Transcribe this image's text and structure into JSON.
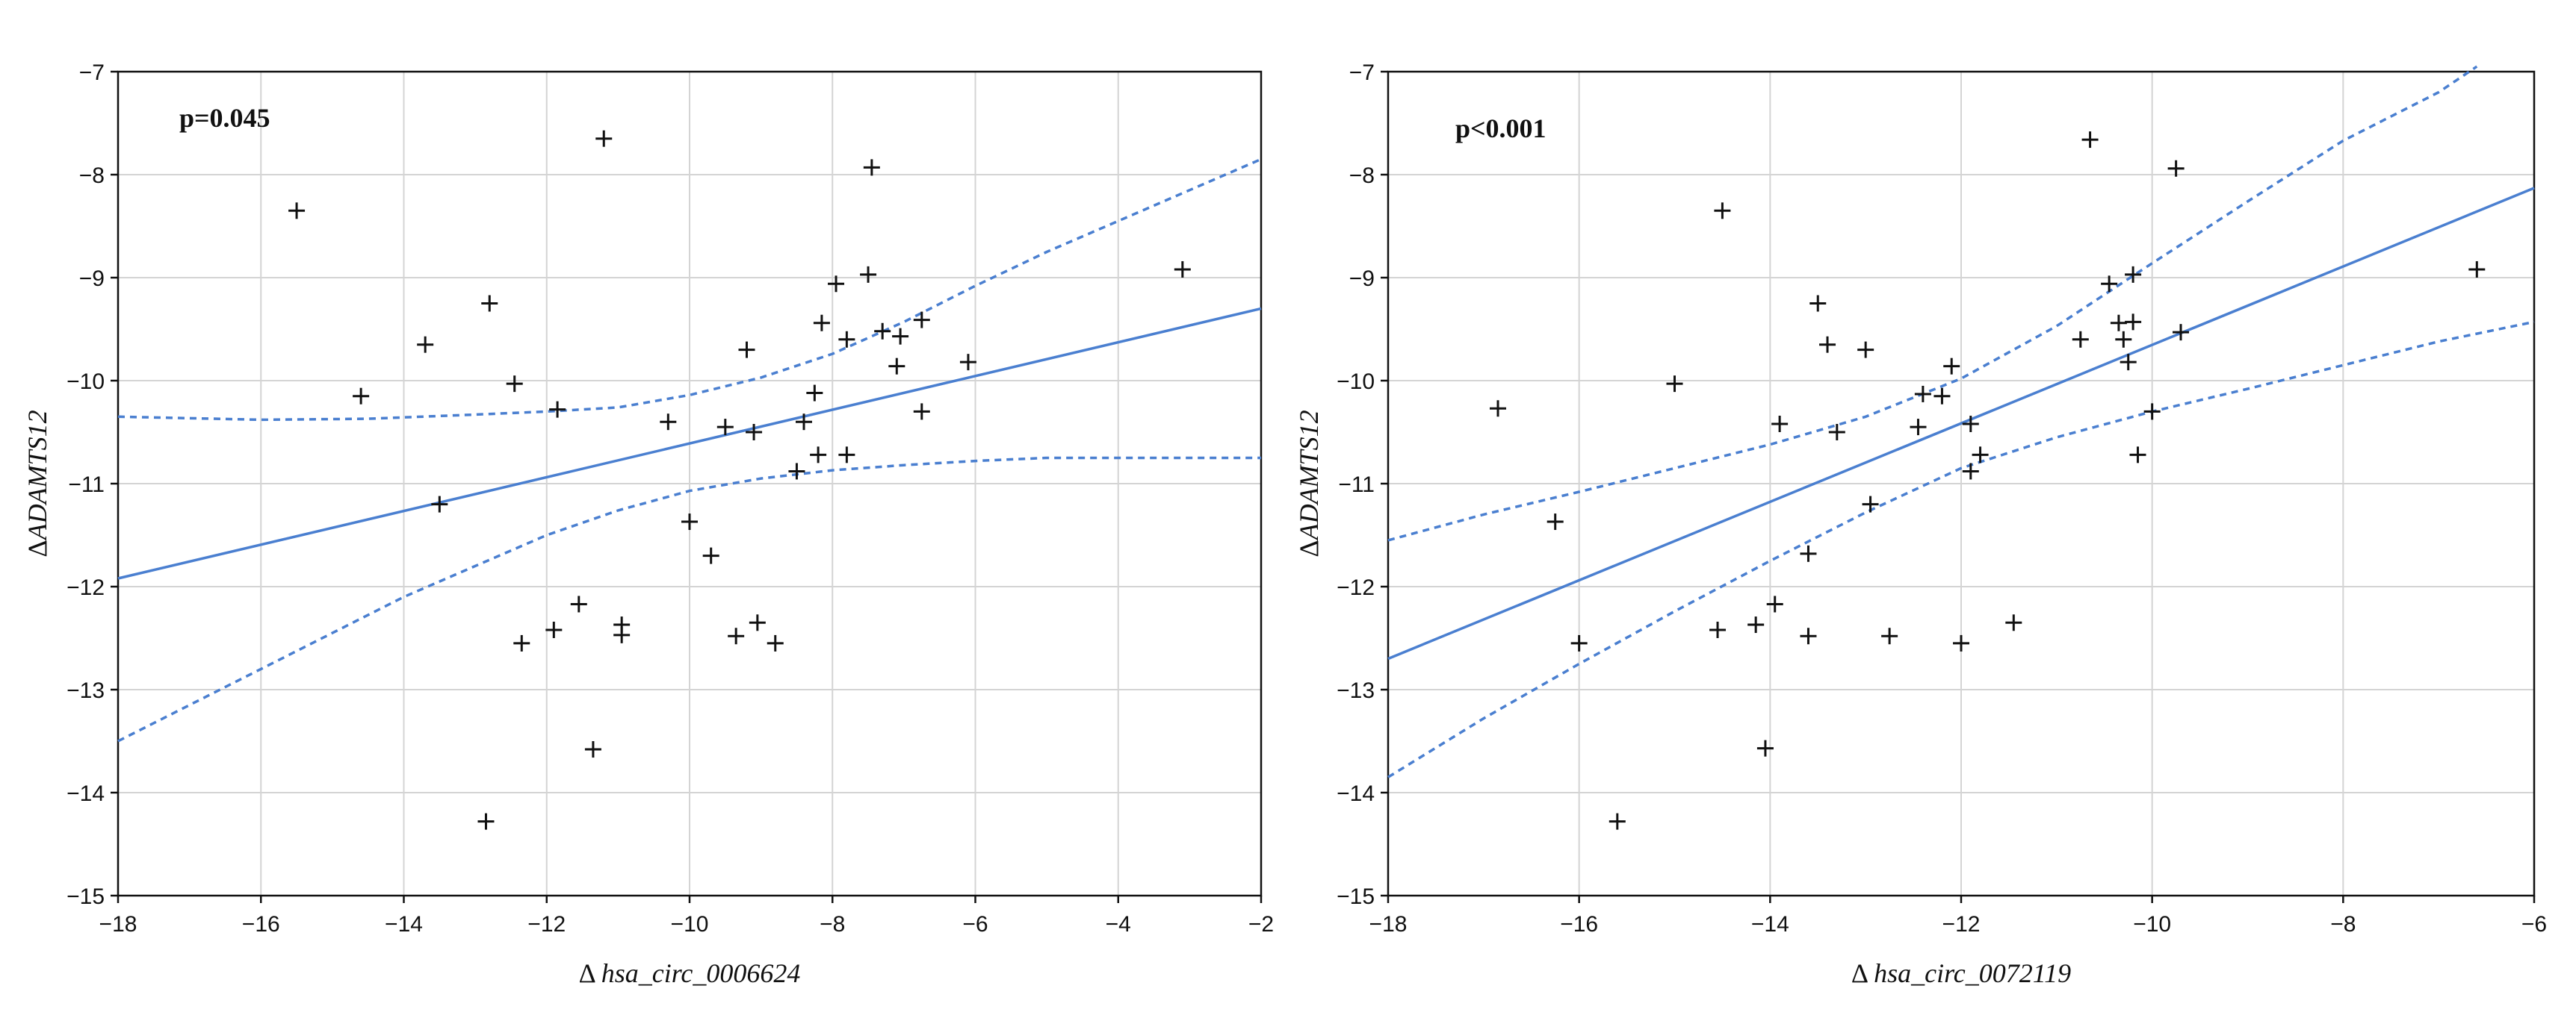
{
  "chart_data": [
    {
      "type": "scatter",
      "annotation": "p=0.045",
      "xlabel_prefix": "Δ",
      "xlabel": "hsa_circ_0006624",
      "ylabel_prefix": "Δ",
      "ylabel": "ADAMTS12",
      "xlim": [
        -18,
        -2
      ],
      "ylim": [
        -15,
        -7
      ],
      "xticks": [
        -18,
        -16,
        -14,
        -12,
        -10,
        -8,
        -6,
        -4,
        -2
      ],
      "yticks": [
        -15,
        -14,
        -13,
        -12,
        -11,
        -10,
        -9,
        -8,
        -7
      ],
      "grid": true,
      "points": [
        [
          -15.5,
          -8.35
        ],
        [
          -14.6,
          -10.15
        ],
        [
          -13.7,
          -9.65
        ],
        [
          -13.5,
          -11.2
        ],
        [
          -12.8,
          -9.25
        ],
        [
          -12.85,
          -14.28
        ],
        [
          -12.45,
          -10.03
        ],
        [
          -12.35,
          -12.55
        ],
        [
          -11.9,
          -12.42
        ],
        [
          -11.85,
          -10.28
        ],
        [
          -11.55,
          -12.17
        ],
        [
          -11.35,
          -13.58
        ],
        [
          -11.2,
          -7.65
        ],
        [
          -10.95,
          -12.37
        ],
        [
          -10.95,
          -12.47
        ],
        [
          -10.3,
          -10.4
        ],
        [
          -10.0,
          -11.37
        ],
        [
          -9.7,
          -11.7
        ],
        [
          -9.5,
          -10.45
        ],
        [
          -9.35,
          -12.48
        ],
        [
          -9.2,
          -9.7
        ],
        [
          -9.1,
          -10.5
        ],
        [
          -9.05,
          -12.35
        ],
        [
          -8.8,
          -12.55
        ],
        [
          -8.5,
          -10.88
        ],
        [
          -8.4,
          -10.4
        ],
        [
          -8.25,
          -10.12
        ],
        [
          -8.2,
          -10.72
        ],
        [
          -8.15,
          -9.44
        ],
        [
          -7.95,
          -9.06
        ],
        [
          -7.8,
          -9.6
        ],
        [
          -7.8,
          -10.72
        ],
        [
          -7.5,
          -8.97
        ],
        [
          -7.45,
          -7.93
        ],
        [
          -7.3,
          -9.52
        ],
        [
          -7.1,
          -9.86
        ],
        [
          -7.05,
          -9.57
        ],
        [
          -6.75,
          -10.3
        ],
        [
          -6.75,
          -9.41
        ],
        [
          -6.1,
          -9.82
        ],
        [
          -3.1,
          -8.92
        ]
      ],
      "fit_line": [
        [
          -18,
          -11.92
        ],
        [
          -2,
          -9.3
        ]
      ],
      "ci_upper": [
        [
          -18,
          -10.35
        ],
        [
          -16,
          -10.38
        ],
        [
          -14.5,
          -10.37
        ],
        [
          -13,
          -10.33
        ],
        [
          -12,
          -10.3
        ],
        [
          -11,
          -10.26
        ],
        [
          -10,
          -10.14
        ],
        [
          -9,
          -9.97
        ],
        [
          -8,
          -9.74
        ],
        [
          -7,
          -9.43
        ],
        [
          -6,
          -9.08
        ],
        [
          -5,
          -8.75
        ],
        [
          -4,
          -8.45
        ],
        [
          -3,
          -8.15
        ],
        [
          -2,
          -7.85
        ]
      ],
      "ci_lower": [
        [
          -18,
          -13.5
        ],
        [
          -17,
          -13.15
        ],
        [
          -16,
          -12.8
        ],
        [
          -15,
          -12.45
        ],
        [
          -14,
          -12.1
        ],
        [
          -13,
          -11.8
        ],
        [
          -12,
          -11.5
        ],
        [
          -11,
          -11.26
        ],
        [
          -10,
          -11.07
        ],
        [
          -9,
          -10.95
        ],
        [
          -8,
          -10.87
        ],
        [
          -7,
          -10.82
        ],
        [
          -6,
          -10.78
        ],
        [
          -5,
          -10.75
        ],
        [
          -4,
          -10.75
        ],
        [
          -2,
          -10.75
        ]
      ]
    },
    {
      "type": "scatter",
      "annotation": "p<0.001",
      "xlabel_prefix": "Δ",
      "xlabel": "hsa_circ_0072119",
      "ylabel_prefix": "Δ",
      "ylabel": "ADAMTS12",
      "xlim": [
        -18,
        -6
      ],
      "ylim": [
        -15,
        -7
      ],
      "xticks": [
        -18,
        -16,
        -14,
        -12,
        -10,
        -8,
        -6
      ],
      "yticks": [
        -15,
        -14,
        -13,
        -12,
        -11,
        -10,
        -9,
        -8,
        -7
      ],
      "grid": true,
      "points": [
        [
          -16.85,
          -10.27
        ],
        [
          -16.25,
          -11.37
        ],
        [
          -16.0,
          -12.55
        ],
        [
          -15.6,
          -14.28
        ],
        [
          -15.0,
          -10.03
        ],
        [
          -14.55,
          -12.42
        ],
        [
          -14.5,
          -8.35
        ],
        [
          -14.15,
          -12.37
        ],
        [
          -14.05,
          -13.57
        ],
        [
          -13.95,
          -12.17
        ],
        [
          -13.9,
          -10.42
        ],
        [
          -13.6,
          -11.68
        ],
        [
          -13.6,
          -12.48
        ],
        [
          -13.5,
          -9.25
        ],
        [
          -13.4,
          -9.65
        ],
        [
          -13.3,
          -10.5
        ],
        [
          -13.0,
          -9.7
        ],
        [
          -12.95,
          -11.2
        ],
        [
          -12.75,
          -12.48
        ],
        [
          -12.45,
          -10.45
        ],
        [
          -12.4,
          -10.13
        ],
        [
          -12.2,
          -10.15
        ],
        [
          -12.1,
          -9.86
        ],
        [
          -12.0,
          -12.55
        ],
        [
          -11.9,
          -10.42
        ],
        [
          -11.9,
          -10.88
        ],
        [
          -11.8,
          -10.72
        ],
        [
          -11.45,
          -12.35
        ],
        [
          -10.75,
          -9.6
        ],
        [
          -10.65,
          -7.66
        ],
        [
          -10.45,
          -9.06
        ],
        [
          -10.35,
          -9.44
        ],
        [
          -10.3,
          -9.6
        ],
        [
          -10.25,
          -9.82
        ],
        [
          -10.2,
          -8.97
        ],
        [
          -10.2,
          -9.43
        ],
        [
          -10.15,
          -10.72
        ],
        [
          -10.0,
          -10.3
        ],
        [
          -9.75,
          -7.94
        ],
        [
          -9.7,
          -9.53
        ],
        [
          -6.6,
          -8.92
        ]
      ],
      "fit_line": [
        [
          -18,
          -12.7
        ],
        [
          -6,
          -8.13
        ]
      ],
      "ci_upper": [
        [
          -18,
          -11.55
        ],
        [
          -17,
          -11.3
        ],
        [
          -16,
          -11.08
        ],
        [
          -15,
          -10.85
        ],
        [
          -14,
          -10.62
        ],
        [
          -13,
          -10.35
        ],
        [
          -12,
          -9.98
        ],
        [
          -11,
          -9.47
        ],
        [
          -10,
          -8.86
        ],
        [
          -9,
          -8.26
        ],
        [
          -8,
          -7.67
        ],
        [
          -7,
          -7.2
        ],
        [
          -6.6,
          -6.95
        ]
      ],
      "ci_lower": [
        [
          -18,
          -13.85
        ],
        [
          -17,
          -13.28
        ],
        [
          -16,
          -12.75
        ],
        [
          -15,
          -12.24
        ],
        [
          -14,
          -11.75
        ],
        [
          -13,
          -11.28
        ],
        [
          -12,
          -10.85
        ],
        [
          -11,
          -10.55
        ],
        [
          -10,
          -10.3
        ],
        [
          -9,
          -10.08
        ],
        [
          -8,
          -9.85
        ],
        [
          -7,
          -9.62
        ],
        [
          -6,
          -9.43
        ]
      ]
    }
  ]
}
